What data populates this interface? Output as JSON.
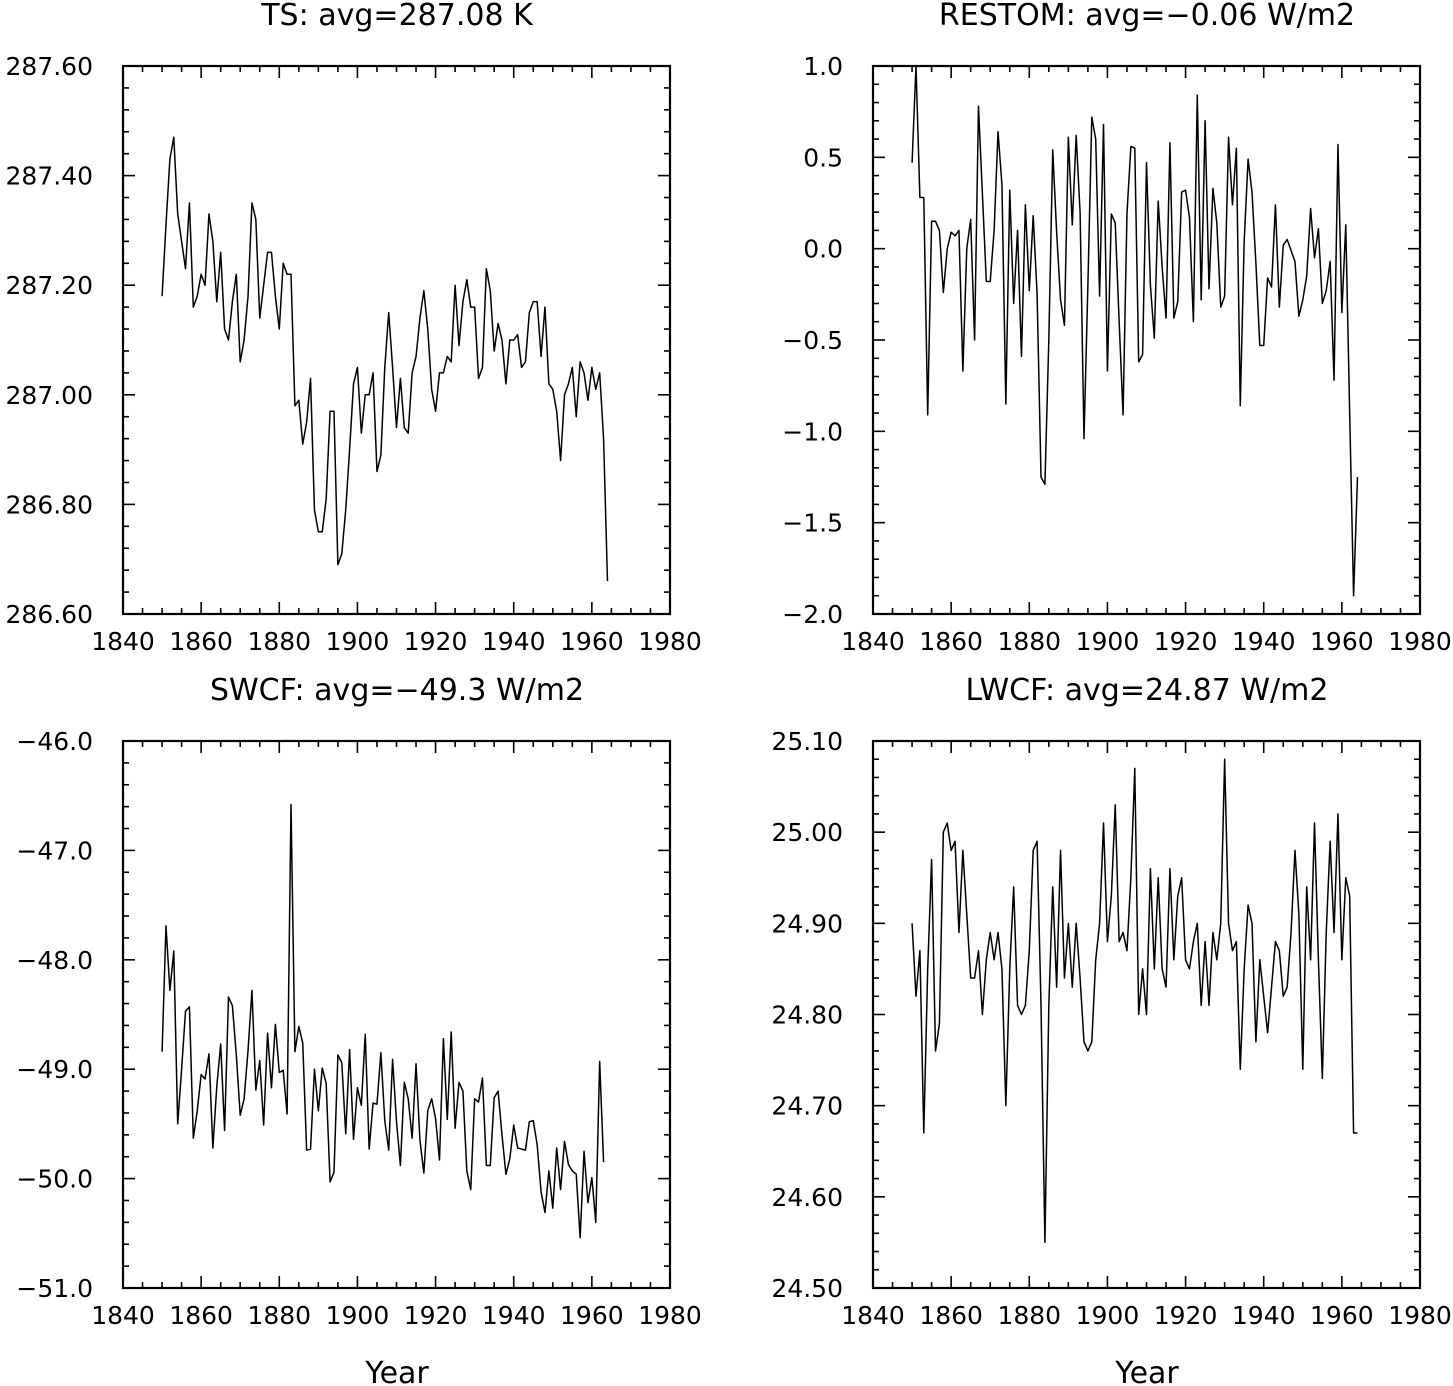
{
  "chart_data": [
    {
      "type": "line",
      "title": "TS: avg=287.08 K",
      "xlabel": "",
      "ylabel": "",
      "xlim": [
        1840,
        1980
      ],
      "ylim": [
        286.6,
        287.6
      ],
      "xticks": [
        1840,
        1860,
        1880,
        1900,
        1920,
        1940,
        1960,
        1980
      ],
      "xtick_labels": [
        "1840",
        "1860",
        "1880",
        "1900",
        "1920",
        "1940",
        "1960",
        "1980"
      ],
      "yticks": [
        286.6,
        286.8,
        287.0,
        287.2,
        287.4,
        287.6
      ],
      "ytick_labels": [
        "286.60",
        "286.80",
        "287.00",
        "287.20",
        "287.40",
        "287.60"
      ],
      "x_start": 1850,
      "x_step": 1,
      "values": [
        287.18,
        287.31,
        287.43,
        287.47,
        287.33,
        287.28,
        287.23,
        287.35,
        287.16,
        287.18,
        287.22,
        287.2,
        287.33,
        287.28,
        287.17,
        287.26,
        287.12,
        287.1,
        287.17,
        287.22,
        287.06,
        287.1,
        287.18,
        287.35,
        287.32,
        287.14,
        287.2,
        287.26,
        287.26,
        287.18,
        287.12,
        287.24,
        287.22,
        287.22,
        286.98,
        286.99,
        286.91,
        286.95,
        287.03,
        286.79,
        286.75,
        286.75,
        286.81,
        286.97,
        286.97,
        286.69,
        286.71,
        286.79,
        286.9,
        287.02,
        287.05,
        286.93,
        287.0,
        287.0,
        287.04,
        286.86,
        286.89,
        287.05,
        287.15,
        287.05,
        286.94,
        287.03,
        286.94,
        286.93,
        287.04,
        287.07,
        287.14,
        287.19,
        287.12,
        287.01,
        286.97,
        287.04,
        287.04,
        287.07,
        287.06,
        287.2,
        287.09,
        287.17,
        287.21,
        287.16,
        287.16,
        287.03,
        287.05,
        287.23,
        287.19,
        287.08,
        287.13,
        287.1,
        287.02,
        287.1,
        287.1,
        287.11,
        287.05,
        287.06,
        287.15,
        287.17,
        287.17,
        287.07,
        287.16,
        287.02,
        287.01,
        286.97,
        286.88,
        287.0,
        287.02,
        287.05,
        286.96,
        287.06,
        287.04,
        286.99,
        287.05,
        287.01,
        287.04,
        286.92,
        286.66
      ]
    },
    {
      "type": "line",
      "title": "RESTOM: avg=−0.06 W/m2",
      "xlabel": "",
      "ylabel": "",
      "xlim": [
        1840,
        1980
      ],
      "ylim": [
        -2.0,
        1.0
      ],
      "xticks": [
        1840,
        1860,
        1880,
        1900,
        1920,
        1940,
        1960,
        1980
      ],
      "xtick_labels": [
        "1840",
        "1860",
        "1880",
        "1900",
        "1920",
        "1940",
        "1960",
        "1980"
      ],
      "yticks": [
        -2.0,
        -1.5,
        -1.0,
        -0.5,
        0.0,
        0.5,
        1.0
      ],
      "ytick_labels": [
        "−2.0",
        "−1.5",
        "−1.0",
        "−0.5",
        "0.0",
        "0.5",
        "1.0"
      ],
      "x_start": 1850,
      "x_step": 1,
      "values": [
        0.47,
        1.0,
        0.28,
        0.28,
        -0.91,
        0.15,
        0.15,
        0.1,
        -0.24,
        0.0,
        0.09,
        0.07,
        0.1,
        -0.67,
        0.0,
        0.16,
        -0.5,
        0.78,
        0.3,
        -0.18,
        -0.18,
        0.1,
        0.64,
        0.35,
        -0.85,
        0.32,
        -0.3,
        0.1,
        -0.59,
        0.24,
        -0.23,
        0.18,
        -0.25,
        -1.25,
        -1.29,
        -0.5,
        0.54,
        0.09,
        -0.28,
        -0.42,
        0.61,
        0.13,
        0.62,
        0.2,
        -1.04,
        -0.2,
        0.72,
        0.6,
        -0.26,
        0.68,
        -0.67,
        0.19,
        0.14,
        -0.4,
        -0.91,
        0.19,
        0.56,
        0.55,
        -0.62,
        -0.58,
        0.47,
        -0.2,
        -0.49,
        0.26,
        -0.1,
        -0.38,
        0.58,
        -0.38,
        -0.29,
        0.31,
        0.32,
        0.17,
        -0.4,
        0.84,
        -0.28,
        0.7,
        -0.22,
        0.33,
        0.14,
        -0.32,
        -0.26,
        0.61,
        0.24,
        0.55,
        -0.86,
        0.04,
        0.49,
        0.31,
        -0.08,
        -0.53,
        -0.53,
        -0.16,
        -0.21,
        0.24,
        -0.32,
        0.02,
        0.05,
        -0.01,
        -0.07,
        -0.37,
        -0.28,
        -0.15,
        0.22,
        -0.05,
        0.11,
        -0.3,
        -0.23,
        -0.07,
        -0.72,
        0.57,
        -0.35,
        0.13,
        -0.9,
        -1.9,
        -1.25
      ]
    },
    {
      "type": "line",
      "title": "SWCF: avg=−49.3 W/m2",
      "xlabel": "Year",
      "ylabel": "",
      "xlim": [
        1840,
        1980
      ],
      "ylim": [
        -51.0,
        -46.0
      ],
      "xticks": [
        1840,
        1860,
        1880,
        1900,
        1920,
        1940,
        1960,
        1980
      ],
      "xtick_labels": [
        "1840",
        "1860",
        "1880",
        "1900",
        "1920",
        "1940",
        "1960",
        "1980"
      ],
      "yticks": [
        -51.0,
        -50.0,
        -49.0,
        -48.0,
        -47.0,
        -46.0
      ],
      "ytick_labels": [
        "−51.0",
        "−50.0",
        "−49.0",
        "−48.0",
        "−47.0",
        "−46.0"
      ],
      "x_start": 1850,
      "x_step": 1,
      "values": [
        -48.84,
        -47.69,
        -48.28,
        -47.92,
        -49.5,
        -49.0,
        -48.47,
        -48.43,
        -49.63,
        -49.38,
        -49.05,
        -49.09,
        -48.86,
        -49.72,
        -49.16,
        -48.77,
        -49.56,
        -48.34,
        -48.42,
        -48.87,
        -49.42,
        -49.27,
        -48.83,
        -48.28,
        -49.19,
        -48.92,
        -49.51,
        -48.67,
        -49.17,
        -48.59,
        -49.03,
        -49.01,
        -49.41,
        -46.58,
        -48.84,
        -48.61,
        -48.76,
        -49.74,
        -49.73,
        -49.0,
        -49.38,
        -48.99,
        -49.13,
        -50.03,
        -49.94,
        -48.87,
        -48.94,
        -49.59,
        -48.82,
        -49.64,
        -49.17,
        -49.33,
        -48.68,
        -49.73,
        -49.31,
        -49.32,
        -48.85,
        -49.47,
        -49.74,
        -48.91,
        -49.48,
        -49.88,
        -49.12,
        -49.27,
        -49.63,
        -48.95,
        -49.65,
        -49.95,
        -49.38,
        -49.27,
        -49.45,
        -49.83,
        -48.72,
        -49.46,
        -48.66,
        -49.54,
        -49.12,
        -49.2,
        -49.93,
        -50.1,
        -49.27,
        -49.3,
        -49.08,
        -49.88,
        -49.88,
        -49.26,
        -49.2,
        -49.6,
        -49.96,
        -49.82,
        -49.51,
        -49.72,
        -49.73,
        -49.74,
        -49.48,
        -49.47,
        -49.69,
        -50.12,
        -50.31,
        -49.93,
        -50.27,
        -49.72,
        -50.1,
        -49.66,
        -49.87,
        -49.93,
        -49.96,
        -50.54,
        -49.75,
        -50.22,
        -49.99,
        -50.4,
        -48.93,
        -49.85
      ]
    },
    {
      "type": "line",
      "title": "LWCF: avg=24.87 W/m2",
      "xlabel": "Year",
      "ylabel": "",
      "xlim": [
        1840,
        1980
      ],
      "ylim": [
        24.5,
        25.1
      ],
      "xticks": [
        1840,
        1860,
        1880,
        1900,
        1920,
        1940,
        1960,
        1980
      ],
      "xtick_labels": [
        "1840",
        "1860",
        "1880",
        "1900",
        "1920",
        "1940",
        "1960",
        "1980"
      ],
      "yticks": [
        24.5,
        24.6,
        24.7,
        24.8,
        24.9,
        25.0,
        25.1
      ],
      "ytick_labels": [
        "24.50",
        "24.60",
        "24.70",
        "24.80",
        "24.90",
        "25.00",
        "25.10"
      ],
      "x_start": 1850,
      "x_step": 1,
      "values": [
        24.9,
        24.82,
        24.87,
        24.67,
        24.85,
        24.97,
        24.76,
        24.79,
        25.0,
        25.01,
        24.98,
        24.99,
        24.89,
        24.98,
        24.91,
        24.84,
        24.84,
        24.87,
        24.8,
        24.86,
        24.89,
        24.86,
        24.89,
        24.85,
        24.7,
        24.85,
        24.94,
        24.81,
        24.8,
        24.81,
        24.87,
        24.98,
        24.99,
        24.81,
        24.55,
        24.81,
        24.94,
        24.83,
        24.98,
        24.84,
        24.9,
        24.83,
        24.9,
        24.84,
        24.77,
        24.76,
        24.77,
        24.86,
        24.9,
        25.01,
        24.88,
        24.93,
        25.03,
        24.88,
        24.89,
        24.87,
        24.95,
        25.07,
        24.8,
        24.85,
        24.8,
        24.96,
        24.85,
        24.95,
        24.85,
        24.83,
        24.96,
        24.86,
        24.93,
        24.95,
        24.86,
        24.85,
        24.88,
        24.9,
        24.81,
        24.88,
        24.81,
        24.89,
        24.86,
        24.9,
        25.08,
        24.9,
        24.87,
        24.88,
        24.74,
        24.85,
        24.92,
        24.9,
        24.77,
        24.86,
        24.82,
        24.78,
        24.83,
        24.88,
        24.87,
        24.82,
        24.83,
        24.89,
        24.98,
        24.91,
        24.74,
        24.94,
        24.86,
        25.01,
        24.86,
        24.73,
        24.89,
        24.99,
        24.89,
        25.02,
        24.86,
        24.95,
        24.93,
        24.67,
        24.67
      ]
    }
  ]
}
